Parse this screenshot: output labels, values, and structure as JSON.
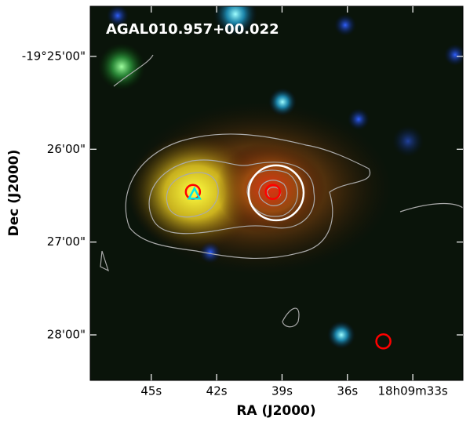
{
  "chart_data": {
    "type": "scatter",
    "title": "AGAL010.957+00.022",
    "xlabel": "RA (J2000)",
    "ylabel": "Dec (J2000)",
    "xlim": [
      47.8,
      30.7
    ],
    "ylim": [
      28.49,
      24.46
    ],
    "xticks": [
      {
        "value": 45,
        "label": "45s"
      },
      {
        "value": 42,
        "label": "42s"
      },
      {
        "value": 39,
        "label": "39s"
      },
      {
        "value": 36,
        "label": "36s"
      },
      {
        "value": 33,
        "label": "18h09m33s"
      }
    ],
    "yticks": [
      {
        "value": 25,
        "label": "-19°25'00\""
      },
      {
        "value": 26,
        "label": "26'00\""
      },
      {
        "value": 27,
        "label": "27'00\""
      },
      {
        "value": 28,
        "label": "28'00\""
      }
    ],
    "series": [
      {
        "color": "#ff0000",
        "marker": "circle",
        "x": [
          43.09,
          39.42,
          34.35
        ],
        "y": [
          26.46,
          26.46,
          28.07
        ]
      },
      {
        "color": "#00e5e5",
        "marker": "triangle",
        "x": [
          43.02
        ],
        "y": [
          26.49
        ]
      },
      {
        "color": "#ffffff",
        "marker": "big-circle",
        "x": [
          39.27
        ],
        "y": [
          26.47
        ]
      }
    ]
  }
}
